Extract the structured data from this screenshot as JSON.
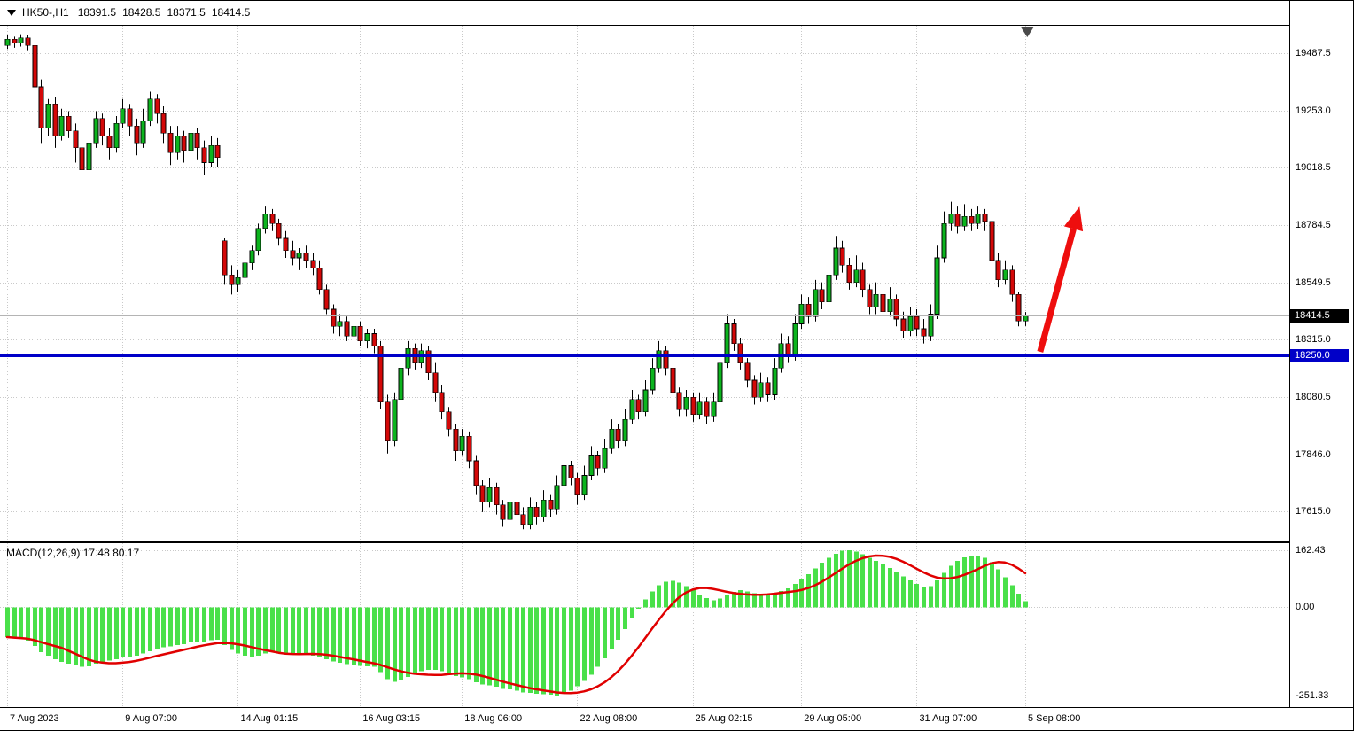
{
  "colors": {
    "bull": "#0cb41e",
    "bear": "#d40808",
    "wick": "#000000",
    "grid": "#c9c9c9",
    "price_line": "#b4b4b4",
    "macd_bar": "#49e049",
    "signal": "#e00000",
    "tag_current_bg": "#000000",
    "support": "#0000c8",
    "arrow": "#ee0e0e",
    "shift_marker": "#4a4a4a"
  },
  "header": {
    "symbol_period": "HK50-,H1",
    "open": "18391.5",
    "high": "18428.5",
    "low": "18371.5",
    "close": "18414.5"
  },
  "chart_data": {
    "type": "candlestick",
    "title": "HK50- H1 candlestick chart with MACD(12,26,9)",
    "price_axis": {
      "tick_labels": [
        "19487.5",
        "19253.0",
        "19018.5",
        "18784.5",
        "18549.5",
        "18315.0",
        "18080.5",
        "17846.0",
        "17615.0"
      ],
      "ylim": [
        17490,
        19600
      ]
    },
    "current_price": "18414.5",
    "support_line": {
      "price": 18250,
      "label": "18250.0"
    },
    "time_axis": [
      {
        "label": "7 Aug 2023",
        "i": 0
      },
      {
        "label": "9 Aug 07:00",
        "i": 17
      },
      {
        "label": "14 Aug 01:15",
        "i": 34
      },
      {
        "label": "16 Aug 03:15",
        "i": 52
      },
      {
        "label": "18 Aug 06:00",
        "i": 67
      },
      {
        "label": "22 Aug 08:00",
        "i": 84
      },
      {
        "label": "25 Aug 02:15",
        "i": 101
      },
      {
        "label": "29 Aug 05:00",
        "i": 117
      },
      {
        "label": "31 Aug 07:00",
        "i": 134
      },
      {
        "label": "5 Sep 08:00",
        "i": 150
      }
    ],
    "first_bar_x": 8,
    "bar_spacing": 7.66,
    "candles": [
      [
        19520,
        19560,
        19505,
        19545
      ],
      [
        19545,
        19555,
        19510,
        19530
      ],
      [
        19530,
        19565,
        19515,
        19550
      ],
      [
        19550,
        19560,
        19500,
        19520
      ],
      [
        19520,
        19540,
        19320,
        19350
      ],
      [
        19350,
        19380,
        19120,
        19180
      ],
      [
        19180,
        19300,
        19150,
        19280
      ],
      [
        19280,
        19310,
        19100,
        19150
      ],
      [
        19150,
        19260,
        19130,
        19230
      ],
      [
        19230,
        19250,
        19140,
        19170
      ],
      [
        19170,
        19200,
        19040,
        19100
      ],
      [
        19100,
        19130,
        18970,
        19010
      ],
      [
        19010,
        19150,
        18990,
        19120
      ],
      [
        19120,
        19250,
        19100,
        19220
      ],
      [
        19220,
        19240,
        19110,
        19150
      ],
      [
        19150,
        19180,
        19050,
        19100
      ],
      [
        19100,
        19230,
        19080,
        19200
      ],
      [
        19200,
        19300,
        19180,
        19260
      ],
      [
        19260,
        19280,
        19150,
        19190
      ],
      [
        19190,
        19220,
        19070,
        19120
      ],
      [
        19120,
        19260,
        19100,
        19210
      ],
      [
        19210,
        19330,
        19190,
        19300
      ],
      [
        19300,
        19320,
        19200,
        19240
      ],
      [
        19240,
        19270,
        19120,
        19160
      ],
      [
        19160,
        19190,
        19030,
        19080
      ],
      [
        19080,
        19190,
        19050,
        19150
      ],
      [
        19150,
        19170,
        19040,
        19090
      ],
      [
        19090,
        19200,
        19070,
        19160
      ],
      [
        19160,
        19180,
        19050,
        19100
      ],
      [
        19100,
        19130,
        18990,
        19040
      ],
      [
        19040,
        19150,
        19020,
        19110
      ],
      [
        19110,
        19140,
        19020,
        19060
      ],
      [
        18720,
        18730,
        18540,
        18580
      ],
      [
        18580,
        18620,
        18500,
        18540
      ],
      [
        18540,
        18600,
        18510,
        18570
      ],
      [
        18570,
        18650,
        18550,
        18630
      ],
      [
        18630,
        18700,
        18600,
        18680
      ],
      [
        18680,
        18790,
        18660,
        18770
      ],
      [
        18770,
        18860,
        18750,
        18830
      ],
      [
        18830,
        18850,
        18760,
        18790
      ],
      [
        18790,
        18810,
        18700,
        18730
      ],
      [
        18730,
        18760,
        18650,
        18680
      ],
      [
        18680,
        18720,
        18620,
        18650
      ],
      [
        18650,
        18690,
        18600,
        18670
      ],
      [
        18670,
        18700,
        18610,
        18640
      ],
      [
        18640,
        18670,
        18580,
        18610
      ],
      [
        18610,
        18640,
        18500,
        18520
      ],
      [
        18520,
        18540,
        18420,
        18440
      ],
      [
        18440,
        18460,
        18340,
        18370
      ],
      [
        18370,
        18420,
        18330,
        18390
      ],
      [
        18390,
        18410,
        18310,
        18330
      ],
      [
        18330,
        18390,
        18300,
        18370
      ],
      [
        18370,
        18390,
        18290,
        18310
      ],
      [
        18310,
        18360,
        18280,
        18340
      ],
      [
        18340,
        18360,
        18260,
        18290
      ],
      [
        18290,
        18310,
        18030,
        18060
      ],
      [
        18060,
        18090,
        17850,
        17900
      ],
      [
        17900,
        18100,
        17880,
        18070
      ],
      [
        18070,
        18230,
        18050,
        18200
      ],
      [
        18200,
        18310,
        18170,
        18280
      ],
      [
        18280,
        18300,
        18190,
        18220
      ],
      [
        18220,
        18300,
        18200,
        18270
      ],
      [
        18270,
        18290,
        18150,
        18180
      ],
      [
        18180,
        18220,
        18060,
        18100
      ],
      [
        18100,
        18130,
        17990,
        18020
      ],
      [
        18020,
        18040,
        17920,
        17950
      ],
      [
        17950,
        17970,
        17820,
        17860
      ],
      [
        17860,
        17950,
        17840,
        17920
      ],
      [
        17920,
        17940,
        17790,
        17820
      ],
      [
        17820,
        17840,
        17680,
        17720
      ],
      [
        17720,
        17740,
        17610,
        17650
      ],
      [
        17650,
        17750,
        17630,
        17710
      ],
      [
        17710,
        17730,
        17600,
        17640
      ],
      [
        17640,
        17660,
        17550,
        17580
      ],
      [
        17580,
        17690,
        17560,
        17650
      ],
      [
        17650,
        17670,
        17570,
        17600
      ],
      [
        17600,
        17630,
        17540,
        17560
      ],
      [
        17560,
        17670,
        17540,
        17630
      ],
      [
        17630,
        17650,
        17560,
        17590
      ],
      [
        17590,
        17700,
        17570,
        17660
      ],
      [
        17660,
        17680,
        17590,
        17620
      ],
      [
        17620,
        17760,
        17600,
        17720
      ],
      [
        17720,
        17840,
        17700,
        17800
      ],
      [
        17800,
        17820,
        17720,
        17750
      ],
      [
        17750,
        17770,
        17640,
        17680
      ],
      [
        17680,
        17800,
        17660,
        17760
      ],
      [
        17760,
        17880,
        17740,
        17840
      ],
      [
        17840,
        17860,
        17760,
        17790
      ],
      [
        17790,
        17910,
        17770,
        17870
      ],
      [
        17870,
        17990,
        17850,
        17950
      ],
      [
        17950,
        17970,
        17870,
        17900
      ],
      [
        17900,
        18030,
        17880,
        17990
      ],
      [
        17990,
        18110,
        17970,
        18070
      ],
      [
        18070,
        18090,
        17990,
        18020
      ],
      [
        18020,
        18150,
        18000,
        18110
      ],
      [
        18110,
        18240,
        18090,
        18200
      ],
      [
        18200,
        18310,
        18180,
        18270
      ],
      [
        18270,
        18290,
        18170,
        18200
      ],
      [
        18200,
        18220,
        18070,
        18100
      ],
      [
        18100,
        18120,
        18000,
        18030
      ],
      [
        18030,
        18110,
        18000,
        18080
      ],
      [
        18080,
        18100,
        17980,
        18010
      ],
      [
        18010,
        18100,
        17990,
        18060
      ],
      [
        18060,
        18080,
        17970,
        18000
      ],
      [
        18000,
        18100,
        17980,
        18060
      ],
      [
        18060,
        18260,
        18020,
        18220
      ],
      [
        18220,
        18420,
        18200,
        18380
      ],
      [
        18380,
        18400,
        18270,
        18300
      ],
      [
        18300,
        18320,
        18190,
        18220
      ],
      [
        18220,
        18240,
        18120,
        18150
      ],
      [
        18150,
        18170,
        18050,
        18080
      ],
      [
        18080,
        18180,
        18060,
        18140
      ],
      [
        18140,
        18160,
        18060,
        18090
      ],
      [
        18090,
        18240,
        18070,
        18200
      ],
      [
        18200,
        18340,
        18180,
        18300
      ],
      [
        18300,
        18330,
        18220,
        18250
      ],
      [
        18250,
        18420,
        18230,
        18380
      ],
      [
        18380,
        18500,
        18360,
        18460
      ],
      [
        18460,
        18490,
        18380,
        18410
      ],
      [
        18410,
        18560,
        18390,
        18520
      ],
      [
        18520,
        18550,
        18440,
        18470
      ],
      [
        18470,
        18630,
        18450,
        18580
      ],
      [
        18580,
        18740,
        18560,
        18690
      ],
      [
        18690,
        18720,
        18590,
        18620
      ],
      [
        18620,
        18650,
        18520,
        18550
      ],
      [
        18550,
        18660,
        18530,
        18600
      ],
      [
        18600,
        18630,
        18490,
        18520
      ],
      [
        18520,
        18540,
        18420,
        18450
      ],
      [
        18450,
        18550,
        18420,
        18500
      ],
      [
        18500,
        18520,
        18400,
        18430
      ],
      [
        18430,
        18530,
        18410,
        18480
      ],
      [
        18480,
        18500,
        18370,
        18400
      ],
      [
        18400,
        18430,
        18320,
        18350
      ],
      [
        18350,
        18450,
        18330,
        18410
      ],
      [
        18410,
        18440,
        18330,
        18360
      ],
      [
        18360,
        18400,
        18300,
        18330
      ],
      [
        18330,
        18460,
        18310,
        18420
      ],
      [
        18420,
        18700,
        18400,
        18650
      ],
      [
        18650,
        18840,
        18630,
        18790
      ],
      [
        18790,
        18880,
        18760,
        18830
      ],
      [
        18830,
        18860,
        18750,
        18780
      ],
      [
        18780,
        18870,
        18760,
        18820
      ],
      [
        18820,
        18850,
        18760,
        18790
      ],
      [
        18790,
        18860,
        18770,
        18830
      ],
      [
        18830,
        18850,
        18760,
        18800
      ],
      [
        18800,
        18820,
        18610,
        18640
      ],
      [
        18640,
        18670,
        18530,
        18560
      ],
      [
        18560,
        18640,
        18540,
        18600
      ],
      [
        18600,
        18620,
        18470,
        18500
      ],
      [
        18500,
        18510,
        18370,
        18391.5
      ],
      [
        18391.5,
        18428.5,
        18371.5,
        18414.5
      ]
    ],
    "macd": {
      "label": "MACD(12,26,9)",
      "value": "17.48",
      "signal_value": "80.17",
      "axis_labels": [
        {
          "text": "162.43",
          "v": 162.43
        },
        {
          "text": "0.00",
          "v": 0
        },
        {
          "text": "-251.33",
          "v": -251.33
        }
      ],
      "ylim": [
        -284,
        182
      ],
      "signal_sma_period": 9,
      "histogram": [
        -85,
        -88,
        -90,
        -95,
        -110,
        -128,
        -138,
        -148,
        -155,
        -160,
        -165,
        -170,
        -168,
        -160,
        -155,
        -152,
        -148,
        -143,
        -140,
        -138,
        -132,
        -125,
        -118,
        -114,
        -112,
        -108,
        -105,
        -100,
        -98,
        -97,
        -94,
        -92,
        -108,
        -122,
        -132,
        -138,
        -140,
        -138,
        -132,
        -128,
        -128,
        -130,
        -133,
        -134,
        -135,
        -138,
        -142,
        -148,
        -154,
        -158,
        -162,
        -164,
        -167,
        -168,
        -170,
        -185,
        -205,
        -212,
        -208,
        -198,
        -190,
        -182,
        -178,
        -178,
        -182,
        -188,
        -196,
        -200,
        -205,
        -213,
        -220,
        -222,
        -226,
        -232,
        -234,
        -237,
        -242,
        -244,
        -246,
        -247,
        -249,
        -251.33,
        -246,
        -237,
        -225,
        -210,
        -192,
        -170,
        -146,
        -120,
        -92,
        -62,
        -30,
        -4,
        22,
        45,
        62,
        72,
        75,
        70,
        60,
        48,
        36,
        26,
        20,
        24,
        35,
        44,
        48,
        45,
        40,
        36,
        34,
        38,
        46,
        54,
        66,
        80,
        94,
        110,
        126,
        140,
        152,
        160,
        162.43,
        158,
        150,
        140,
        132,
        122,
        112,
        100,
        88,
        76,
        66,
        58,
        60,
        76,
        98,
        118,
        132,
        142,
        146,
        144,
        140,
        128,
        108,
        85,
        62,
        38,
        17.48
      ]
    },
    "annotations": {
      "arrow": {
        "from_i": 152.2,
        "from_price": 18266,
        "to_i": 158,
        "to_price": 18860
      },
      "shift_marker_i": 150.3
    }
  }
}
